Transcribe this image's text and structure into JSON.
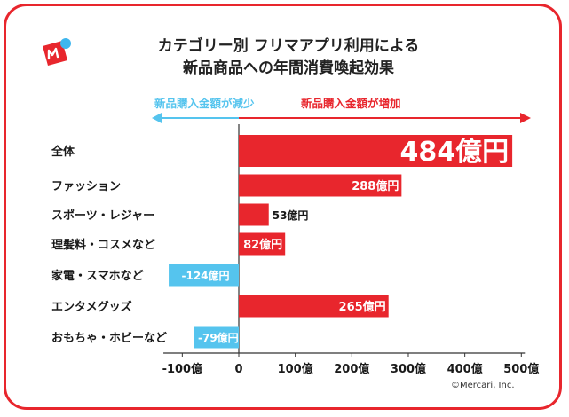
{
  "title": {
    "line1": "カテゴリー別 フリマアプリ利用による",
    "line2": "新品商品への年間消費喚起効果"
  },
  "directions": {
    "decrease": "新品購入金額が減少",
    "increase": "新品購入金額が増加"
  },
  "credit": "©Mercari, Inc.",
  "colors": {
    "frame": "#e8262d",
    "positive": "#e8262d",
    "negative": "#55c4ee",
    "logo_dot": "#3fb6ee"
  },
  "chart_data": {
    "type": "bar",
    "orientation": "horizontal",
    "unit": "億円",
    "categories": [
      "全体",
      "ファッション",
      "スポーツ・レジャー",
      "理髪料・コスメなど",
      "家電・スマホなど",
      "エンタメグッズ",
      "おもちゃ・ホビーなど"
    ],
    "values": [
      484,
      288,
      53,
      82,
      -124,
      265,
      -79
    ],
    "data_labels": [
      "484億円",
      "288億円",
      "53億円",
      "82億円",
      "-124億円",
      "265億円",
      "-79億円"
    ],
    "xlim": [
      -100,
      500
    ],
    "xticks": [
      -100,
      0,
      100,
      200,
      300,
      400,
      500
    ],
    "xtick_labels": [
      "-100億",
      "0",
      "100億",
      "200億",
      "300億",
      "400億",
      "500億"
    ],
    "grid": false,
    "legend": "none"
  }
}
